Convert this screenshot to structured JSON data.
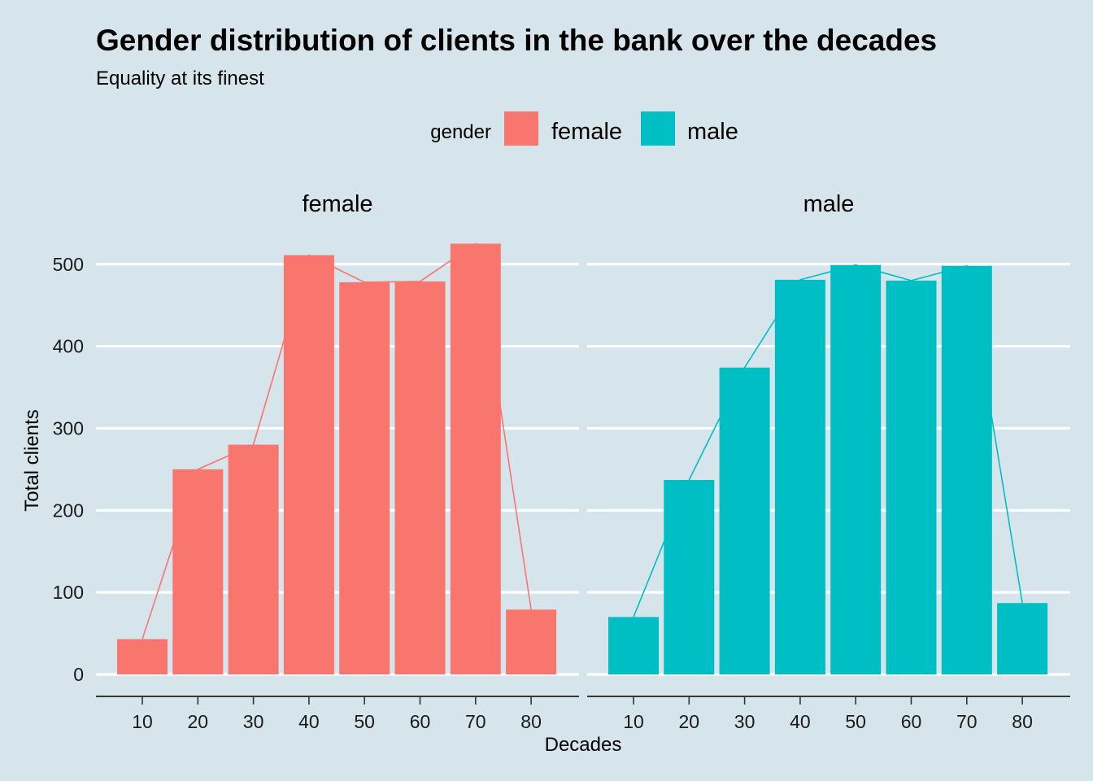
{
  "chart_data": {
    "type": "bar",
    "title": "Gender distribution of clients in the bank over the decades",
    "subtitle": "Equality at its finest",
    "xlabel": "Decades",
    "ylabel": "Total clients",
    "categories": [
      "10",
      "20",
      "30",
      "40",
      "50",
      "60",
      "70",
      "80"
    ],
    "y_ticks": [
      "0",
      "100",
      "200",
      "300",
      "400",
      "500"
    ],
    "ylim": [
      0,
      540
    ],
    "grid": "horizontal major lines",
    "legend": {
      "title": "gender",
      "position": "top",
      "entries": [
        {
          "label": "female",
          "color": "#f8766d"
        },
        {
          "label": "male",
          "color": "#00bfc4"
        }
      ]
    },
    "facets": [
      {
        "name": "female",
        "color": "#f8766d",
        "values": [
          43,
          250,
          280,
          511,
          478,
          479,
          525,
          79
        ]
      },
      {
        "name": "male",
        "color": "#00bfc4",
        "values": [
          70,
          237,
          374,
          481,
          499,
          480,
          498,
          87
        ]
      }
    ],
    "overlay": "line through bar tops"
  }
}
